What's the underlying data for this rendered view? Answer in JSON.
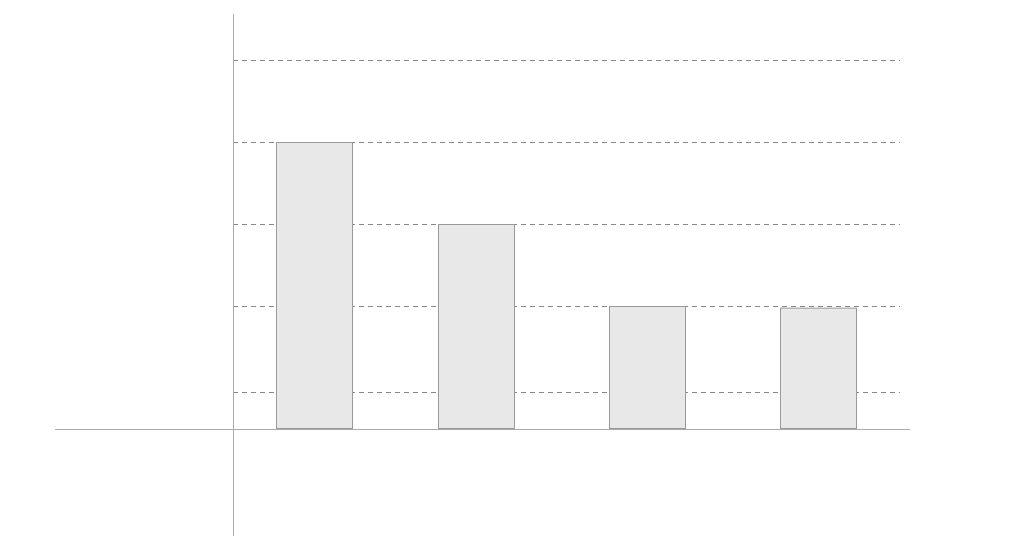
{
  "chart_data": {
    "type": "bar",
    "categories": [
      "",
      "",
      "",
      ""
    ],
    "values": [
      3.5,
      2.5,
      1.5,
      1.48
    ],
    "title": "",
    "xlabel": "",
    "ylabel": "",
    "ylim": [
      0,
      4.5
    ],
    "gridlines_y": [
      0.45,
      1.5,
      2.5,
      3.5,
      4.5
    ],
    "grid": true,
    "grid_style": "dashed",
    "legend": "none",
    "colors": {
      "bar_fill": "#e8e8e8",
      "bar_stroke": "#999999",
      "axis": "#aaaaaa",
      "grid": "#888888",
      "background": "#ffffff"
    }
  }
}
